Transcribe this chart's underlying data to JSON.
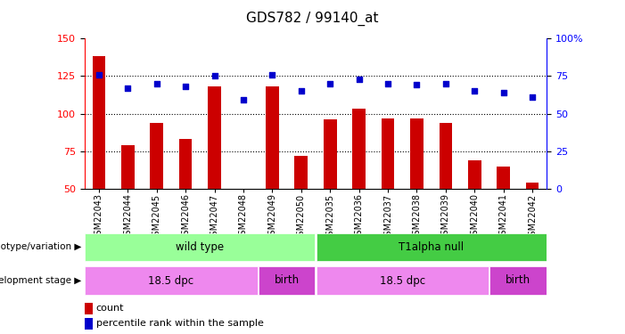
{
  "title": "GDS782 / 99140_at",
  "samples": [
    "GSM22043",
    "GSM22044",
    "GSM22045",
    "GSM22046",
    "GSM22047",
    "GSM22048",
    "GSM22049",
    "GSM22050",
    "GSM22035",
    "GSM22036",
    "GSM22037",
    "GSM22038",
    "GSM22039",
    "GSM22040",
    "GSM22041",
    "GSM22042"
  ],
  "counts": [
    138,
    79,
    94,
    83,
    118,
    50,
    118,
    72,
    96,
    103,
    97,
    97,
    94,
    69,
    65,
    54
  ],
  "percentiles": [
    76,
    67,
    70,
    68,
    75,
    59,
    76,
    65,
    70,
    73,
    70,
    69,
    70,
    65,
    64,
    61
  ],
  "bar_color": "#cc0000",
  "dot_color": "#0000cc",
  "ylim_left": [
    50,
    150
  ],
  "ylim_right": [
    0,
    100
  ],
  "yticks_left": [
    50,
    75,
    100,
    125,
    150
  ],
  "yticks_right": [
    0,
    25,
    50,
    75,
    100
  ],
  "yticklabels_right": [
    "0",
    "25",
    "50",
    "75",
    "100%"
  ],
  "hlines": [
    75,
    100,
    125
  ],
  "genotype_groups": [
    {
      "label": "wild type",
      "start": 0,
      "end": 8,
      "color": "#99ff99"
    },
    {
      "label": "T1alpha null",
      "start": 8,
      "end": 16,
      "color": "#44cc44"
    }
  ],
  "dev_stage_groups": [
    {
      "label": "18.5 dpc",
      "start": 0,
      "end": 6,
      "color": "#ee88ee"
    },
    {
      "label": "birth",
      "start": 6,
      "end": 8,
      "color": "#cc44cc"
    },
    {
      "label": "18.5 dpc",
      "start": 8,
      "end": 14,
      "color": "#ee88ee"
    },
    {
      "label": "birth",
      "start": 14,
      "end": 16,
      "color": "#cc44cc"
    }
  ],
  "legend_count_color": "#cc0000",
  "legend_pct_color": "#0000cc",
  "background_color": "#ffffff",
  "label_genotype": "genotype/variation",
  "label_devstage": "development stage",
  "legend_count": "count",
  "legend_pct": "percentile rank within the sample"
}
